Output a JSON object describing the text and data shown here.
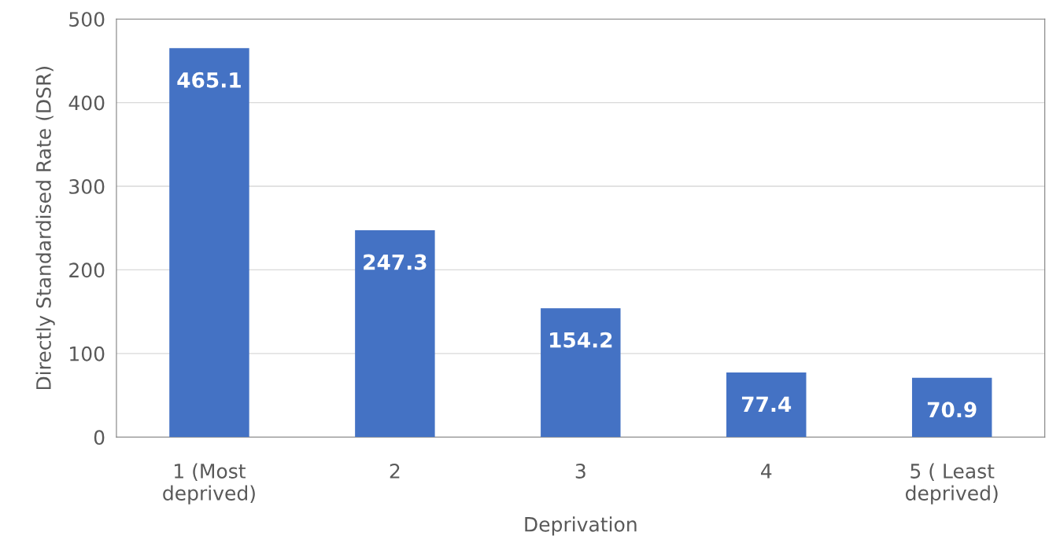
{
  "chart_data": {
    "type": "bar",
    "xlabel": "Deprivation",
    "ylabel": "Directly Standardised Rate (DSR)",
    "categories": [
      "1 (Most\ndeprived)",
      "2",
      "3",
      "4",
      "5 ( Least\ndeprived)"
    ],
    "values": [
      465.1,
      247.3,
      154.2,
      77.4,
      70.9
    ],
    "color": "#4472c4",
    "ylim": [
      0,
      500
    ],
    "yticks": [
      0,
      100,
      200,
      300,
      400,
      500
    ],
    "grid": "y",
    "data_labels": true
  }
}
